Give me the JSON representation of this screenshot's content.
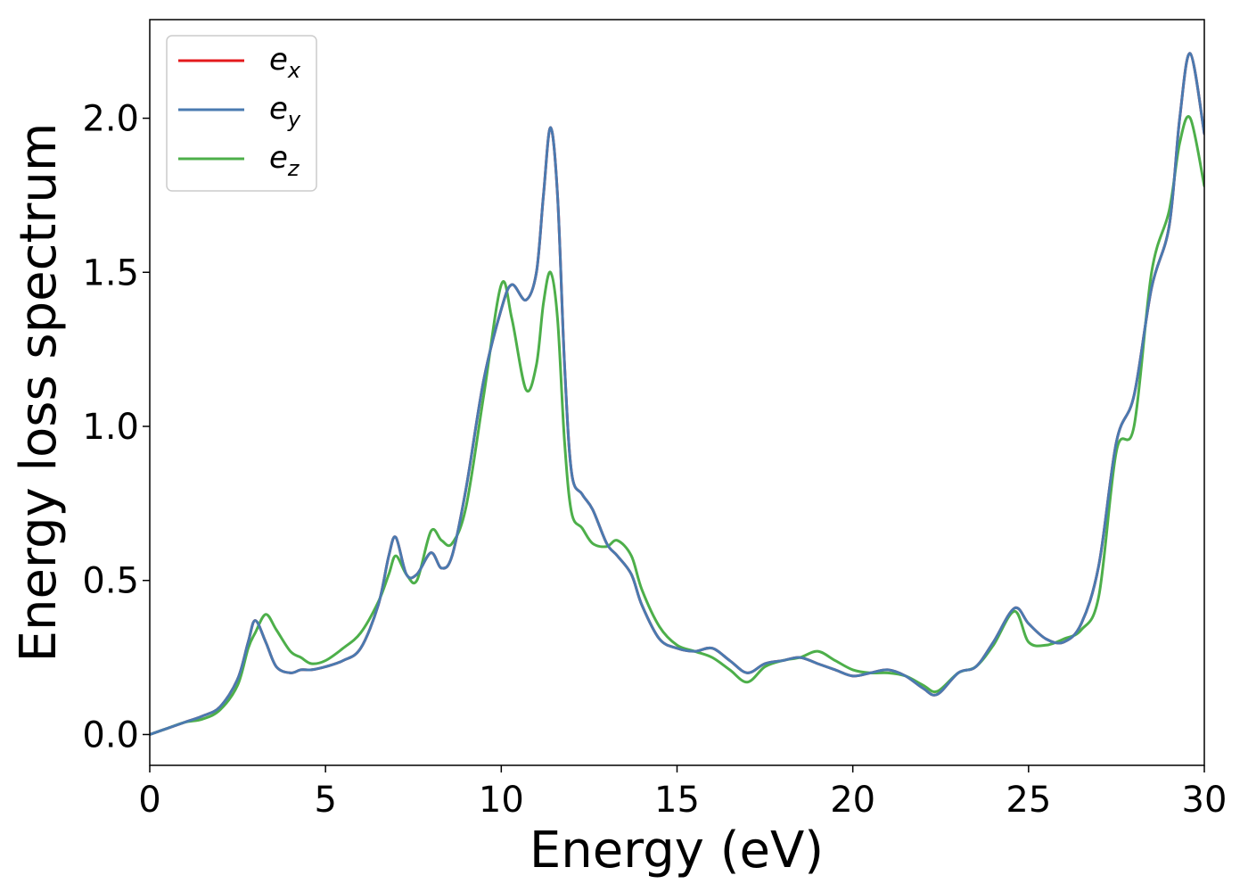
{
  "chart_data": {
    "type": "line",
    "xlabel": "Energy (eV)",
    "ylabel": "Energy loss spectrum",
    "xlim": [
      0,
      30
    ],
    "ylim": [
      -0.1,
      2.32
    ],
    "xticks": [
      0,
      5,
      10,
      15,
      20,
      25,
      30
    ],
    "xtick_labels": [
      "0",
      "5",
      "10",
      "15",
      "20",
      "25",
      "30"
    ],
    "yticks": [
      0.0,
      0.5,
      1.0,
      1.5,
      2.0
    ],
    "ytick_labels": [
      "0.0",
      "0.5",
      "1.0",
      "1.5",
      "2.0"
    ],
    "grid": false,
    "legend_position": "top-left",
    "x": [
      0,
      0.5,
      1,
      1.5,
      2,
      2.5,
      2.8,
      3,
      3.3,
      3.6,
      4,
      4.3,
      4.6,
      5,
      5.5,
      6,
      6.5,
      6.8,
      7,
      7.3,
      7.6,
      8,
      8.3,
      8.6,
      9,
      9.5,
      10,
      10.3,
      10.7,
      11,
      11.2,
      11.4,
      11.6,
      11.8,
      12,
      12.3,
      12.6,
      13,
      13.3,
      13.7,
      14,
      14.5,
      15,
      15.5,
      16,
      16.5,
      17,
      17.5,
      18,
      18.5,
      19,
      19.5,
      20,
      20.5,
      21,
      21.5,
      22,
      22.4,
      23,
      23.5,
      24,
      24.6,
      25,
      25.5,
      26,
      26.5,
      27,
      27.5,
      28,
      28.5,
      29,
      29.3,
      29.6,
      30
    ],
    "series": [
      {
        "name": "e",
        "subscript": "x",
        "color": "#e41a1c",
        "values": [
          0,
          0.02,
          0.04,
          0.06,
          0.09,
          0.18,
          0.3,
          0.37,
          0.3,
          0.22,
          0.2,
          0.21,
          0.21,
          0.22,
          0.24,
          0.28,
          0.42,
          0.58,
          0.64,
          0.52,
          0.52,
          0.59,
          0.54,
          0.58,
          0.8,
          1.15,
          1.38,
          1.46,
          1.41,
          1.5,
          1.75,
          1.97,
          1.75,
          1.2,
          0.85,
          0.78,
          0.73,
          0.62,
          0.58,
          0.52,
          0.42,
          0.31,
          0.28,
          0.27,
          0.28,
          0.24,
          0.2,
          0.23,
          0.24,
          0.25,
          0.23,
          0.21,
          0.19,
          0.2,
          0.21,
          0.19,
          0.15,
          0.13,
          0.2,
          0.22,
          0.3,
          0.41,
          0.36,
          0.31,
          0.3,
          0.36,
          0.55,
          0.95,
          1.1,
          1.45,
          1.65,
          2.0,
          2.21,
          1.95
        ]
      },
      {
        "name": "e",
        "subscript": "y",
        "color": "#4a7ab0",
        "values": [
          0,
          0.02,
          0.04,
          0.06,
          0.09,
          0.18,
          0.3,
          0.37,
          0.3,
          0.22,
          0.2,
          0.21,
          0.21,
          0.22,
          0.24,
          0.28,
          0.42,
          0.58,
          0.64,
          0.52,
          0.52,
          0.59,
          0.54,
          0.58,
          0.8,
          1.15,
          1.38,
          1.46,
          1.41,
          1.5,
          1.75,
          1.97,
          1.75,
          1.2,
          0.85,
          0.78,
          0.73,
          0.62,
          0.58,
          0.52,
          0.42,
          0.31,
          0.28,
          0.27,
          0.28,
          0.24,
          0.2,
          0.23,
          0.24,
          0.25,
          0.23,
          0.21,
          0.19,
          0.2,
          0.21,
          0.19,
          0.15,
          0.13,
          0.2,
          0.22,
          0.3,
          0.41,
          0.36,
          0.31,
          0.3,
          0.36,
          0.55,
          0.95,
          1.1,
          1.45,
          1.65,
          2.0,
          2.21,
          1.95
        ]
      },
      {
        "name": "e",
        "subscript": "z",
        "color": "#4daf4a",
        "values": [
          0,
          0.02,
          0.04,
          0.05,
          0.08,
          0.16,
          0.28,
          0.33,
          0.39,
          0.34,
          0.27,
          0.25,
          0.23,
          0.24,
          0.28,
          0.33,
          0.43,
          0.52,
          0.58,
          0.52,
          0.5,
          0.66,
          0.63,
          0.62,
          0.74,
          1.1,
          1.46,
          1.35,
          1.12,
          1.2,
          1.4,
          1.5,
          1.35,
          0.95,
          0.72,
          0.67,
          0.62,
          0.61,
          0.63,
          0.58,
          0.47,
          0.35,
          0.29,
          0.27,
          0.25,
          0.21,
          0.17,
          0.22,
          0.24,
          0.25,
          0.27,
          0.24,
          0.21,
          0.2,
          0.2,
          0.19,
          0.16,
          0.14,
          0.2,
          0.22,
          0.29,
          0.4,
          0.3,
          0.29,
          0.31,
          0.34,
          0.45,
          0.92,
          1.0,
          1.5,
          1.7,
          1.92,
          2.0,
          1.78
        ]
      }
    ]
  }
}
